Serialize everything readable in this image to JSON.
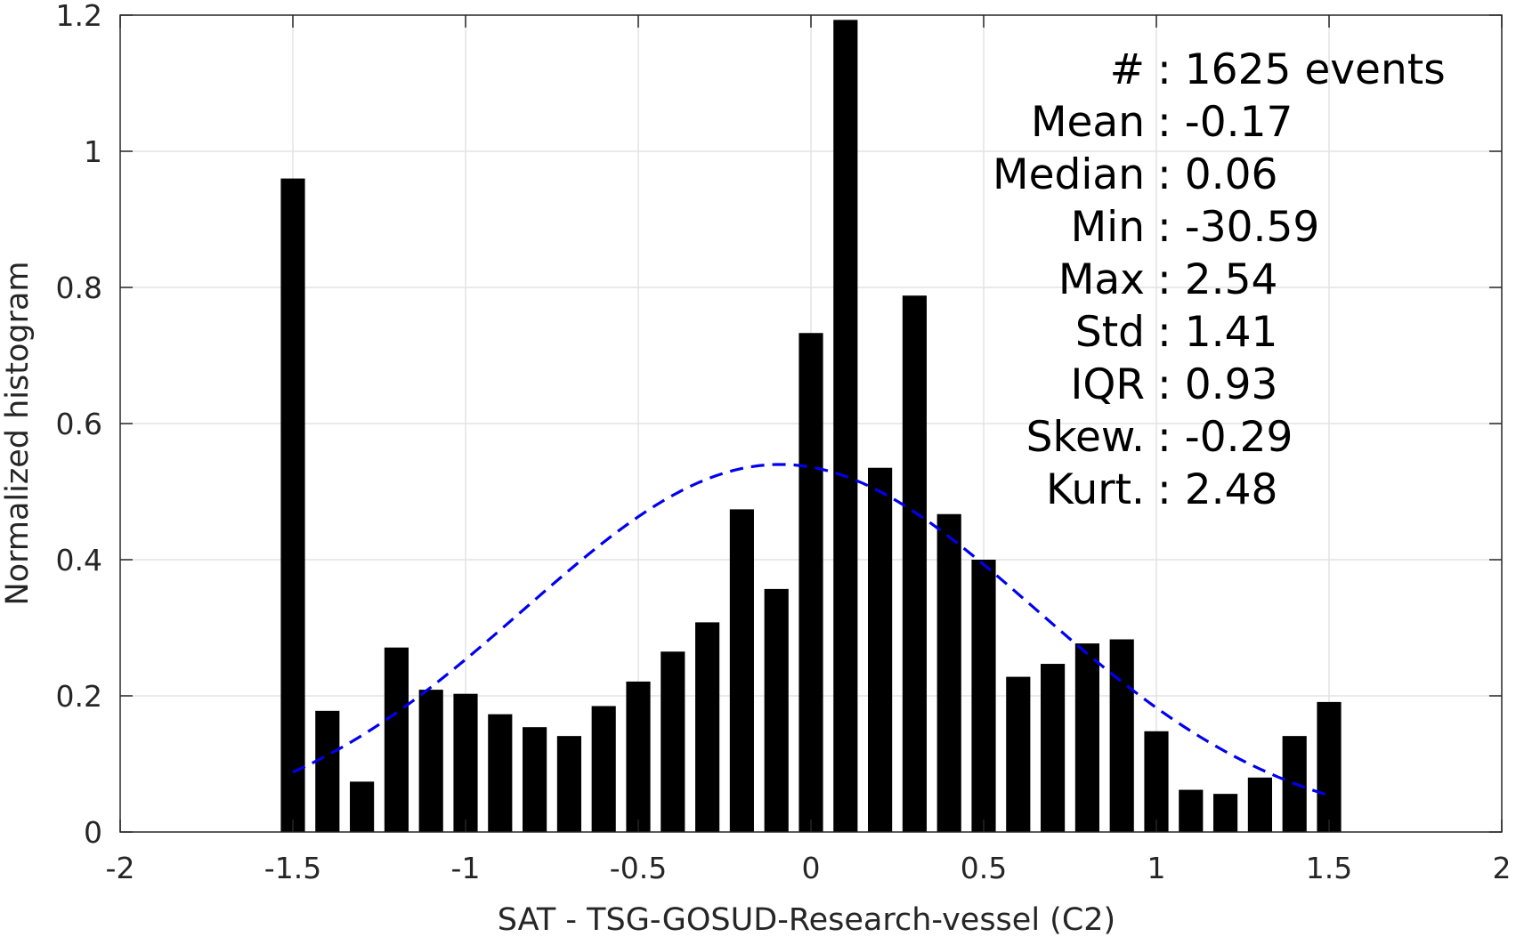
{
  "chart_data": {
    "type": "bar",
    "xlabel": "SAT - TSG-GOSUD-Research-vessel (C2)",
    "ylabel": "Normalized histogram",
    "xlim": [
      -2,
      2
    ],
    "ylim": [
      0,
      1.2
    ],
    "xticks": [
      -2,
      -1.5,
      -1,
      -0.5,
      0,
      0.5,
      1,
      1.5,
      2
    ],
    "xtick_labels": [
      "-2",
      "-1.5",
      "-1",
      "-0.5",
      "0",
      "0.5",
      "1",
      "1.5",
      "2"
    ],
    "yticks": [
      0,
      0.2,
      0.4,
      0.6,
      0.8,
      1,
      1.2
    ],
    "ytick_labels": [
      "0",
      "0.2",
      "0.4",
      "0.6",
      "0.8",
      "1",
      "1.2"
    ],
    "grid": true,
    "bar_color": "#000000",
    "bar_width": 0.07,
    "bars": [
      {
        "x": -1.5,
        "y": 0.96
      },
      {
        "x": -1.4,
        "y": 0.178
      },
      {
        "x": -1.3,
        "y": 0.074
      },
      {
        "x": -1.2,
        "y": 0.271
      },
      {
        "x": -1.1,
        "y": 0.209
      },
      {
        "x": -1.0,
        "y": 0.203
      },
      {
        "x": -0.9,
        "y": 0.173
      },
      {
        "x": -0.8,
        "y": 0.154
      },
      {
        "x": -0.7,
        "y": 0.141
      },
      {
        "x": -0.6,
        "y": 0.185
      },
      {
        "x": -0.5,
        "y": 0.221
      },
      {
        "x": -0.4,
        "y": 0.265
      },
      {
        "x": -0.3,
        "y": 0.308
      },
      {
        "x": -0.2,
        "y": 0.474
      },
      {
        "x": -0.1,
        "y": 0.357
      },
      {
        "x": 0.0,
        "y": 0.733
      },
      {
        "x": 0.1,
        "y": 1.193
      },
      {
        "x": 0.2,
        "y": 0.535
      },
      {
        "x": 0.3,
        "y": 0.788
      },
      {
        "x": 0.4,
        "y": 0.467
      },
      {
        "x": 0.5,
        "y": 0.4
      },
      {
        "x": 0.6,
        "y": 0.228
      },
      {
        "x": 0.7,
        "y": 0.247
      },
      {
        "x": 0.8,
        "y": 0.277
      },
      {
        "x": 0.9,
        "y": 0.283
      },
      {
        "x": 1.0,
        "y": 0.148
      },
      {
        "x": 1.1,
        "y": 0.062
      },
      {
        "x": 1.2,
        "y": 0.056
      },
      {
        "x": 1.3,
        "y": 0.08
      },
      {
        "x": 1.4,
        "y": 0.141
      },
      {
        "x": 1.5,
        "y": 0.191
      }
    ],
    "fit_curve": {
      "style": "dashed",
      "color": "#0000ee",
      "mean": -0.09,
      "sigma": 0.74,
      "peak": 0.54,
      "x_range": [
        -1.5,
        1.5
      ]
    },
    "stats": [
      {
        "label": "#  ",
        "value": "1625 events"
      },
      {
        "label": "Mean",
        "value": "-0.17"
      },
      {
        "label": "Median",
        "value": "0.06"
      },
      {
        "label": "Min",
        "value": "-30.59"
      },
      {
        "label": "Max",
        "value": "2.54"
      },
      {
        "label": "Std",
        "value": "1.41"
      },
      {
        "label": "IQR",
        "value": "0.93"
      },
      {
        "label": "Skew.",
        "value": "-0.29"
      },
      {
        "label": "Kurt.",
        "value": "2.48"
      }
    ],
    "legend": "none"
  }
}
